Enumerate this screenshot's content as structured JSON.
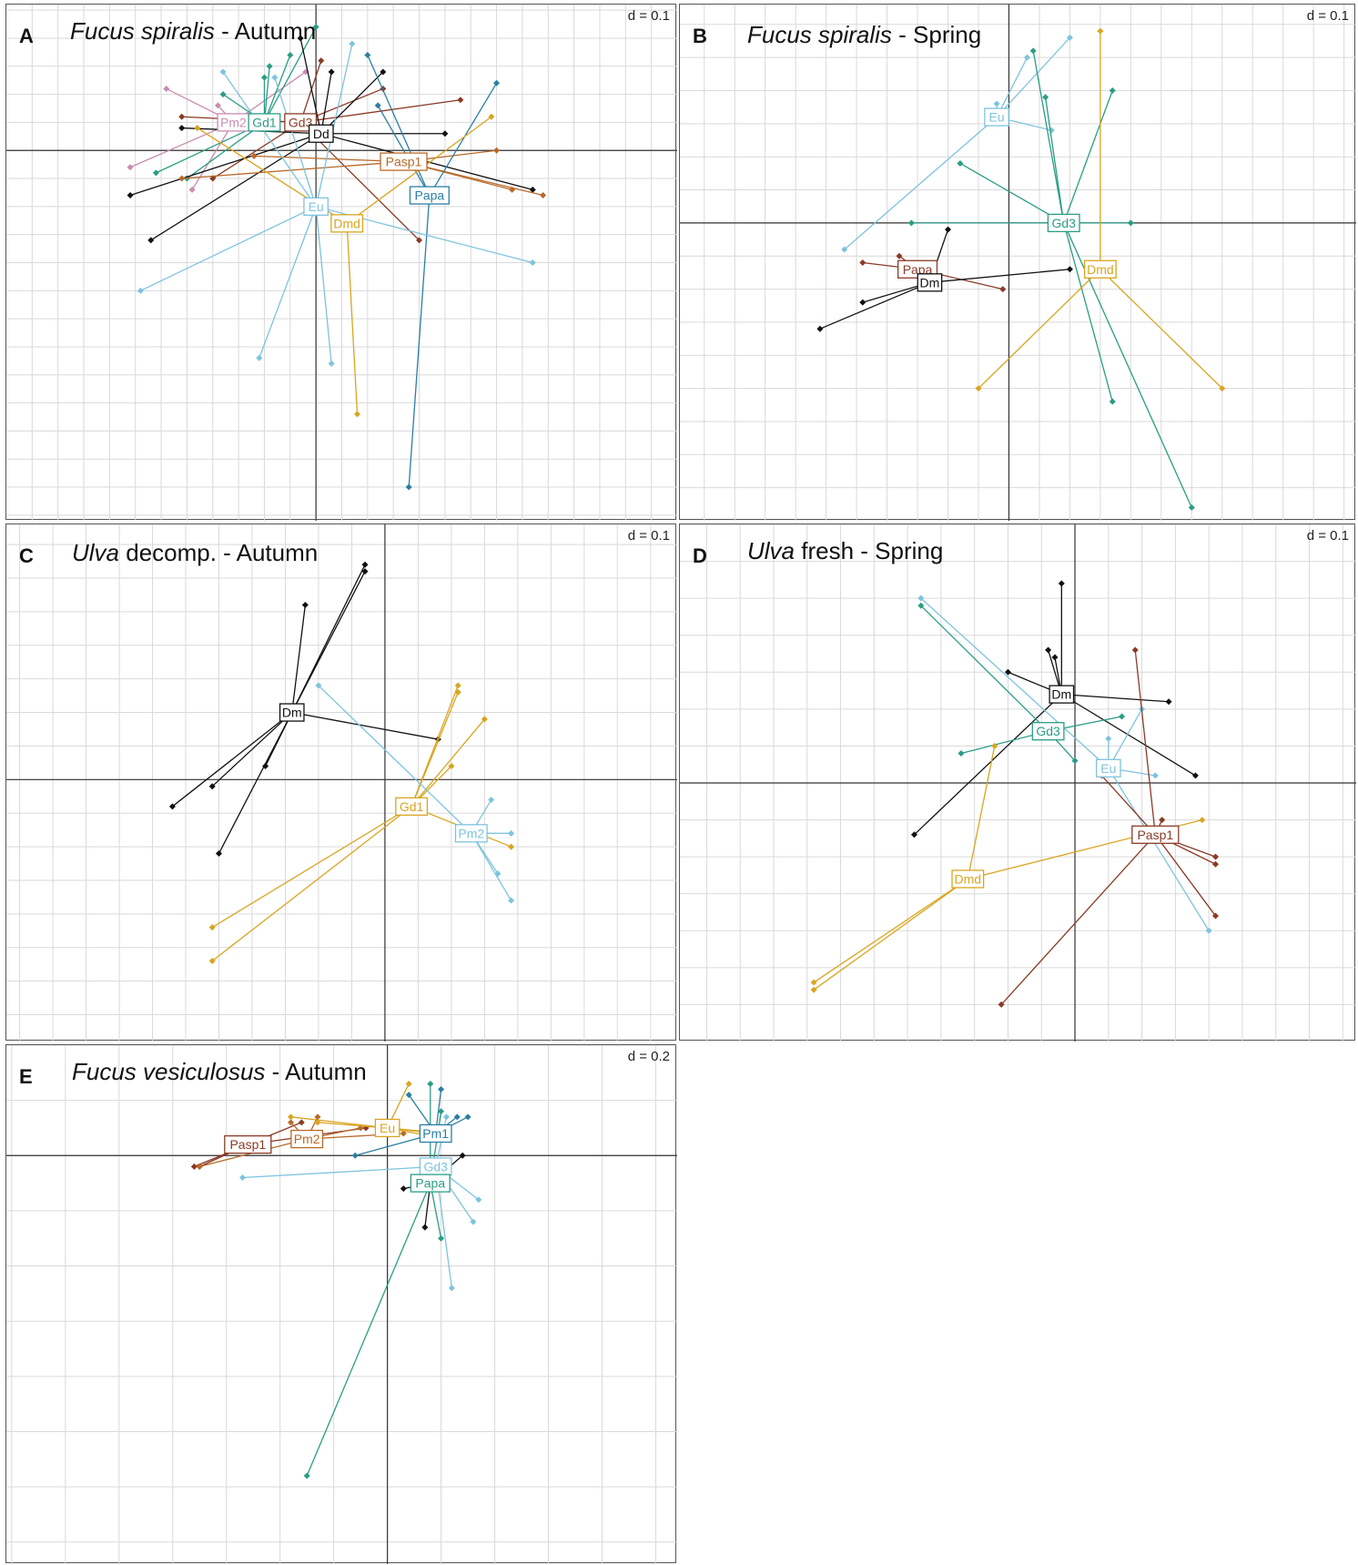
{
  "figure": {
    "panels": [
      {
        "letter": "A",
        "title_italic": "Fucus spiralis",
        "title_rest": " - Autumn",
        "scale": "d = 0.1"
      },
      {
        "letter": "B",
        "title_italic": "Fucus spiralis",
        "title_rest": " - Spring",
        "scale": "d = 0.1"
      },
      {
        "letter": "C",
        "title_italic": "Ulva",
        "title_rest": " decomp. - Autumn",
        "scale": "d = 0.1"
      },
      {
        "letter": "D",
        "title_italic": "Ulva",
        "title_rest": " fresh - Spring",
        "scale": "d = 0.1"
      },
      {
        "letter": "E",
        "title_italic": "Fucus vesiculosus",
        "title_rest": " - Autumn",
        "scale": "d = 0.2"
      }
    ]
  },
  "colors": {
    "Dm": "#111111",
    "Dd": "#111111",
    "Gd1": "#2a9d84",
    "Gd3": "#2a9d84",
    "Eu": "#7ec3de",
    "Dmd": "#d9a520",
    "Pasp1": "#b86a2a",
    "Pm2": "#c98cb2",
    "Papa": "#2b7fa3",
    "Pm1": "#2b7fa3"
  },
  "chart_data": [
    {
      "type": "scatter",
      "panel": "A",
      "title": "Fucus spiralis - Autumn",
      "scale": "d = 0.1",
      "xlim": [
        -0.6,
        0.7
      ],
      "ylim": [
        -0.66,
        0.26
      ],
      "groups": [
        {
          "label": "Pm2",
          "color": "#c98cb2",
          "centroid": [
            -0.16,
            0.05
          ],
          "points": [
            [
              -0.29,
              0.11
            ],
            [
              -0.36,
              -0.03
            ],
            [
              -0.24,
              -0.07
            ],
            [
              -0.19,
              0.08
            ],
            [
              -0.02,
              0.14
            ]
          ]
        },
        {
          "label": "Gd1",
          "color": "#2a9d84",
          "centroid": [
            -0.1,
            0.05
          ],
          "points": [
            [
              -0.31,
              -0.04
            ],
            [
              -0.25,
              -0.05
            ],
            [
              -0.18,
              0.1
            ],
            [
              -0.1,
              0.13
            ],
            [
              -0.05,
              0.17
            ],
            [
              0.0,
              0.22
            ],
            [
              -0.09,
              0.15
            ]
          ]
        },
        {
          "label": "Gd3",
          "color": "#8b3a26",
          "centroid": [
            -0.03,
            0.05
          ],
          "points": [
            [
              -0.26,
              0.06
            ],
            [
              -0.2,
              -0.05
            ],
            [
              0.01,
              0.16
            ],
            [
              0.13,
              0.11
            ],
            [
              0.28,
              0.09
            ],
            [
              0.2,
              -0.16
            ]
          ]
        },
        {
          "label": "Dd",
          "color": "#111111",
          "centroid": [
            0.01,
            0.03
          ],
          "points": [
            [
              -0.36,
              -0.08
            ],
            [
              -0.32,
              -0.16
            ],
            [
              -0.26,
              0.04
            ],
            [
              -0.03,
              0.2
            ],
            [
              0.03,
              0.14
            ],
            [
              0.13,
              0.14
            ],
            [
              0.25,
              0.03
            ],
            [
              0.42,
              -0.07
            ]
          ]
        },
        {
          "label": "Pasp1",
          "color": "#b86a2a",
          "centroid": [
            0.17,
            -0.02
          ],
          "points": [
            [
              -0.26,
              -0.05
            ],
            [
              -0.12,
              -0.01
            ],
            [
              0.35,
              0.0
            ],
            [
              0.44,
              -0.08
            ],
            [
              0.38,
              -0.07
            ]
          ]
        },
        {
          "label": "Papa",
          "color": "#2b7fa3",
          "centroid": [
            0.22,
            -0.08
          ],
          "points": [
            [
              0.1,
              0.17
            ],
            [
              0.35,
              0.12
            ],
            [
              0.18,
              -0.6
            ],
            [
              0.12,
              0.08
            ]
          ]
        },
        {
          "label": "Eu",
          "color": "#7ec3de",
          "centroid": [
            0.0,
            -0.1
          ],
          "points": [
            [
              -0.34,
              -0.25
            ],
            [
              -0.11,
              -0.37
            ],
            [
              0.03,
              -0.38
            ],
            [
              -0.18,
              0.14
            ],
            [
              0.07,
              0.19
            ],
            [
              0.42,
              -0.2
            ],
            [
              -0.08,
              0.13
            ]
          ]
        },
        {
          "label": "Dmd",
          "color": "#d9a520",
          "centroid": [
            0.06,
            -0.13
          ],
          "points": [
            [
              -0.23,
              0.04
            ],
            [
              0.34,
              0.06
            ],
            [
              0.08,
              -0.47
            ]
          ]
        }
      ]
    },
    {
      "type": "scatter",
      "panel": "B",
      "title": "Fucus spiralis - Spring",
      "scale": "d = 0.1",
      "xlim": [
        -0.54,
        0.57
      ],
      "ylim": [
        -0.45,
        0.33
      ],
      "groups": [
        {
          "label": "Eu",
          "color": "#7ec3de",
          "centroid": [
            -0.02,
            0.16
          ],
          "points": [
            [
              -0.27,
              -0.04
            ],
            [
              0.03,
              0.25
            ],
            [
              0.1,
              0.28
            ],
            [
              0.07,
              0.14
            ],
            [
              -0.02,
              0.18
            ]
          ]
        },
        {
          "label": "Gd3",
          "color": "#2a9d84",
          "centroid": [
            0.09,
            0.0
          ],
          "points": [
            [
              -0.16,
              0.0
            ],
            [
              0.04,
              0.26
            ],
            [
              0.06,
              0.19
            ],
            [
              0.17,
              0.2
            ],
            [
              -0.08,
              0.09
            ],
            [
              0.2,
              0.0
            ],
            [
              0.17,
              -0.27
            ],
            [
              0.3,
              -0.43
            ]
          ]
        },
        {
          "label": "Dmd",
          "color": "#d9a520",
          "centroid": [
            0.15,
            -0.07
          ],
          "points": [
            [
              0.15,
              0.29
            ],
            [
              -0.05,
              -0.25
            ],
            [
              0.35,
              -0.25
            ]
          ]
        },
        {
          "label": "Papa",
          "color": "#8b3a26",
          "centroid": [
            -0.15,
            -0.07
          ],
          "points": [
            [
              -0.18,
              -0.05
            ],
            [
              -0.24,
              -0.06
            ],
            [
              -0.01,
              -0.1
            ]
          ]
        },
        {
          "label": "Dm",
          "color": "#111111",
          "centroid": [
            -0.13,
            -0.09
          ],
          "points": [
            [
              -0.31,
              -0.16
            ],
            [
              -0.24,
              -0.12
            ],
            [
              -0.1,
              -0.01
            ],
            [
              0.1,
              -0.07
            ]
          ]
        }
      ]
    },
    {
      "type": "scatter",
      "panel": "C",
      "title": "Ulva decomp. - Autumn",
      "scale": "d = 0.1",
      "xlim": [
        -0.57,
        0.44
      ],
      "ylim": [
        -0.39,
        0.38
      ],
      "groups": [
        {
          "label": "Dm",
          "color": "#111111",
          "centroid": [
            -0.14,
            0.1
          ],
          "points": [
            [
              -0.25,
              -0.11
            ],
            [
              -0.32,
              -0.04
            ],
            [
              -0.18,
              0.02
            ],
            [
              -0.26,
              -0.01
            ],
            [
              -0.12,
              0.26
            ],
            [
              -0.03,
              0.32
            ],
            [
              -0.03,
              0.31
            ],
            [
              0.08,
              0.06
            ]
          ]
        },
        {
          "label": "Gd1",
          "color": "#d9a520",
          "centroid": [
            0.04,
            -0.04
          ],
          "points": [
            [
              0.11,
              0.14
            ],
            [
              0.11,
              0.13
            ],
            [
              0.15,
              0.09
            ],
            [
              0.1,
              0.02
            ],
            [
              -0.26,
              -0.22
            ],
            [
              -0.26,
              -0.27
            ],
            [
              0.19,
              -0.1
            ]
          ]
        },
        {
          "label": "Pm2",
          "color": "#7ec3de",
          "centroid": [
            0.13,
            -0.08
          ],
          "points": [
            [
              -0.1,
              0.14
            ],
            [
              0.16,
              -0.03
            ],
            [
              0.19,
              -0.08
            ],
            [
              0.17,
              -0.14
            ],
            [
              0.19,
              -0.18
            ]
          ]
        }
      ]
    },
    {
      "type": "scatter",
      "panel": "D",
      "title": "Ulva fresh - Spring",
      "scale": "d = 0.1",
      "xlim": [
        -0.59,
        0.42
      ],
      "ylim": [
        -0.35,
        0.35
      ],
      "groups": [
        {
          "label": "Dm",
          "color": "#111111",
          "centroid": [
            -0.02,
            0.12
          ],
          "points": [
            [
              -0.02,
              0.27
            ],
            [
              -0.04,
              0.18
            ],
            [
              -0.03,
              0.17
            ],
            [
              -0.1,
              0.15
            ],
            [
              0.14,
              0.11
            ],
            [
              0.18,
              0.01
            ],
            [
              -0.24,
              -0.07
            ]
          ]
        },
        {
          "label": "Gd3",
          "color": "#2a9d84",
          "centroid": [
            -0.04,
            0.07
          ],
          "points": [
            [
              -0.17,
              0.04
            ],
            [
              0.07,
              0.09
            ],
            [
              0.0,
              0.03
            ],
            [
              -0.23,
              0.24
            ]
          ]
        },
        {
          "label": "Eu",
          "color": "#7ec3de",
          "centroid": [
            0.05,
            0.02
          ],
          "points": [
            [
              -0.23,
              0.25
            ],
            [
              0.05,
              0.06
            ],
            [
              0.2,
              -0.2
            ],
            [
              0.12,
              0.01
            ],
            [
              0.1,
              0.1
            ]
          ]
        },
        {
          "label": "Pasp1",
          "color": "#8b3a26",
          "centroid": [
            0.12,
            -0.07
          ],
          "points": [
            [
              0.09,
              0.18
            ],
            [
              0.13,
              -0.05
            ],
            [
              0.21,
              -0.1
            ],
            [
              0.21,
              -0.11
            ],
            [
              0.21,
              -0.18
            ],
            [
              -0.11,
              -0.3
            ],
            [
              0.04,
              0.01
            ]
          ]
        },
        {
          "label": "Dmd",
          "color": "#d9a520",
          "centroid": [
            -0.16,
            -0.13
          ],
          "points": [
            [
              -0.12,
              0.05
            ],
            [
              -0.16,
              -0.13
            ],
            [
              -0.39,
              -0.27
            ],
            [
              -0.39,
              -0.28
            ],
            [
              0.19,
              -0.05
            ]
          ]
        }
      ]
    },
    {
      "type": "scatter",
      "panel": "E",
      "title": "Fucus vesiculosus - Autumn",
      "scale": "d = 0.2",
      "xlim": [
        -0.71,
        0.54
      ],
      "ylim": [
        -0.74,
        0.2
      ],
      "groups": [
        {
          "label": "Pasp1",
          "color": "#8b3a26",
          "centroid": [
            -0.26,
            0.02
          ],
          "points": [
            [
              -0.35,
              -0.02
            ],
            [
              -0.36,
              -0.02
            ],
            [
              -0.35,
              -0.02
            ],
            [
              -0.23,
              0.01
            ],
            [
              -0.16,
              0.06
            ],
            [
              -0.04,
              0.05
            ]
          ]
        },
        {
          "label": "Pm2",
          "color": "#b86a2a",
          "centroid": [
            -0.15,
            0.03
          ],
          "points": [
            [
              -0.35,
              -0.02
            ],
            [
              -0.18,
              0.06
            ],
            [
              -0.13,
              0.07
            ],
            [
              -0.05,
              0.05
            ],
            [
              0.03,
              0.04
            ]
          ]
        },
        {
          "label": "Eu",
          "color": "#d9a520",
          "centroid": [
            0.0,
            0.05
          ],
          "points": [
            [
              -0.18,
              0.07
            ],
            [
              -0.13,
              0.06
            ],
            [
              0.04,
              0.13
            ],
            [
              0.09,
              0.04
            ],
            [
              0.11,
              0.04
            ],
            [
              0.11,
              0.03
            ]
          ]
        },
        {
          "label": "Pm1",
          "color": "#2b7fa3",
          "centroid": [
            0.09,
            0.04
          ],
          "points": [
            [
              0.04,
              0.11
            ],
            [
              -0.06,
              -0.0
            ],
            [
              0.1,
              0.12
            ],
            [
              0.13,
              0.07
            ],
            [
              0.15,
              0.07
            ]
          ]
        },
        {
          "label": "Gd3",
          "color": "#7ec3de",
          "centroid": [
            0.09,
            -0.02
          ],
          "points": [
            [
              -0.27,
              -0.04
            ],
            [
              0.11,
              0.07
            ],
            [
              0.16,
              -0.12
            ],
            [
              0.17,
              -0.08
            ],
            [
              0.12,
              -0.24
            ]
          ]
        },
        {
          "label": "Papa",
          "color": "#2a9d84",
          "centroid": [
            0.08,
            -0.05
          ],
          "points": [
            [
              -0.15,
              -0.58
            ],
            [
              0.08,
              0.13
            ],
            [
              0.1,
              0.08
            ],
            [
              0.11,
              -0.05
            ],
            [
              0.1,
              -0.15
            ]
          ]
        },
        {
          "label": "",
          "color": "#111111",
          "centroid": [
            0.08,
            -0.05
          ],
          "points": [
            [
              0.03,
              -0.06
            ],
            [
              0.07,
              -0.13
            ],
            [
              0.14,
              -0.0
            ]
          ]
        }
      ]
    }
  ]
}
